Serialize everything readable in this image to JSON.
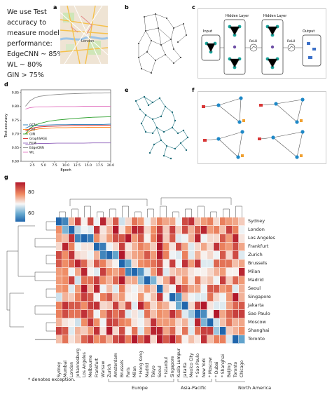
{
  "note": {
    "lines": [
      "We use Test",
      "accuracy to",
      "measure  model",
      "performance:",
      "EdgeCNN ~ 85%",
      "WL ~ 80%",
      "GIN > 75%"
    ]
  },
  "panels": {
    "a": "a",
    "b": "b",
    "c": "c",
    "d": "d",
    "e": "e",
    "f": "f",
    "g": "g"
  },
  "panel_c": {
    "input": "Input",
    "hidden1": "Hidden Layer",
    "relu1": "ReLU",
    "hidden2": "Hidden Layer",
    "relu2": "ReLU",
    "output": "Output"
  },
  "panel_a": {
    "city_label": "London"
  },
  "chart_data": [
    {
      "type": "line",
      "panel": "d",
      "xlabel": "Epoch",
      "ylabel": "Test accuracy",
      "xlim": [
        0,
        20
      ],
      "ylim": [
        0.6,
        0.86
      ],
      "xticks": [
        "2.5",
        "5.0",
        "7.5",
        "10.0",
        "12.5",
        "15.0",
        "17.5",
        "20.0"
      ],
      "yticks": [
        "0.60",
        "0.65",
        "0.70",
        "0.75",
        "0.80",
        "0.85"
      ],
      "legend": "left",
      "series": [
        {
          "name": "GCN",
          "color": "#1f77b4",
          "x": [
            1,
            2,
            3,
            4,
            6,
            8,
            10,
            12,
            14,
            16,
            18,
            20
          ],
          "values": [
            0.72,
            0.728,
            0.73,
            0.731,
            0.732,
            0.733,
            0.733,
            0.734,
            0.734,
            0.734,
            0.734,
            0.735
          ]
        },
        {
          "name": "GAT",
          "color": "#ff7f0e",
          "x": [
            1,
            2,
            3,
            4,
            6,
            8,
            10,
            12,
            14,
            16,
            18,
            20
          ],
          "values": [
            0.7,
            0.71,
            0.715,
            0.718,
            0.72,
            0.722,
            0.722,
            0.723,
            0.723,
            0.724,
            0.724,
            0.724
          ]
        },
        {
          "name": "GIN",
          "color": "#2ca02c",
          "x": [
            1,
            2,
            3,
            4,
            6,
            8,
            10,
            12,
            14,
            16,
            18,
            20
          ],
          "values": [
            0.7,
            0.72,
            0.73,
            0.737,
            0.745,
            0.75,
            0.753,
            0.756,
            0.758,
            0.76,
            0.761,
            0.762
          ]
        },
        {
          "name": "GraphSAGE",
          "color": "#d62728",
          "x": [
            1,
            2,
            3,
            4,
            6,
            8,
            10,
            12,
            14,
            16,
            18,
            20
          ],
          "values": [
            0.71,
            0.718,
            0.722,
            0.725,
            0.727,
            0.728,
            0.729,
            0.73,
            0.73,
            0.73,
            0.731,
            0.731
          ]
        },
        {
          "name": "FiLM",
          "color": "#9467bd",
          "x": [
            1,
            2,
            3,
            4,
            6,
            8,
            10,
            12,
            14,
            16,
            18,
            20
          ],
          "values": [
            0.66,
            0.662,
            0.664,
            0.665,
            0.665,
            0.666,
            0.666,
            0.666,
            0.666,
            0.667,
            0.667,
            0.667
          ]
        },
        {
          "name": "EdgeCNN",
          "color": "#8c8c8c",
          "x": [
            1,
            2,
            3,
            4,
            6,
            8,
            10,
            12,
            14,
            16,
            18,
            20
          ],
          "values": [
            0.8,
            0.82,
            0.83,
            0.836,
            0.84,
            0.843,
            0.845,
            0.846,
            0.847,
            0.848,
            0.848,
            0.849
          ]
        },
        {
          "name": "WL",
          "color": "#e377c2",
          "x": [
            1,
            2,
            3,
            4,
            6,
            8,
            10,
            12,
            14,
            16,
            18,
            20
          ],
          "values": [
            0.79,
            0.795,
            0.797,
            0.798,
            0.798,
            0.799,
            0.799,
            0.799,
            0.8,
            0.8,
            0.8,
            0.8
          ]
        }
      ]
    },
    {
      "type": "heatmap",
      "panel": "g",
      "colorbar_ticks": [
        "80",
        "60"
      ],
      "rows": [
        "Sydney",
        "London",
        "Los Angeles",
        "Frankfurt",
        "Zurich",
        "Brussels",
        "Milan",
        "Madrid",
        "Seoul",
        "Singapore",
        "Jakarta",
        "Sao Paulo",
        "Moscow",
        "Shanghai",
        "Toronto"
      ],
      "cols": [
        "Sydney",
        "Mumbai",
        "London",
        "Johannesburg",
        "Los Angeles",
        "Melbourne",
        "Frankfurt",
        "Warsaw",
        "Zurich",
        "Amsterdam",
        "Brussels",
        "Paris",
        "Milan",
        "* Hong Kong",
        "Madrid",
        "Tokyo",
        "Seoul",
        "* Istanbul",
        "Singapore",
        "Kuala Lumpur",
        "Jakarta",
        "Mexico City",
        "* Sao Paulo",
        "New York",
        "* Moscow",
        "* Dubai",
        "* Shanghai",
        "Beijing",
        "Toronto",
        "Chicago"
      ],
      "regions": [
        "Europe",
        "Asia-Pacific",
        "North America"
      ],
      "footnote": "* denotes exception."
    }
  ]
}
